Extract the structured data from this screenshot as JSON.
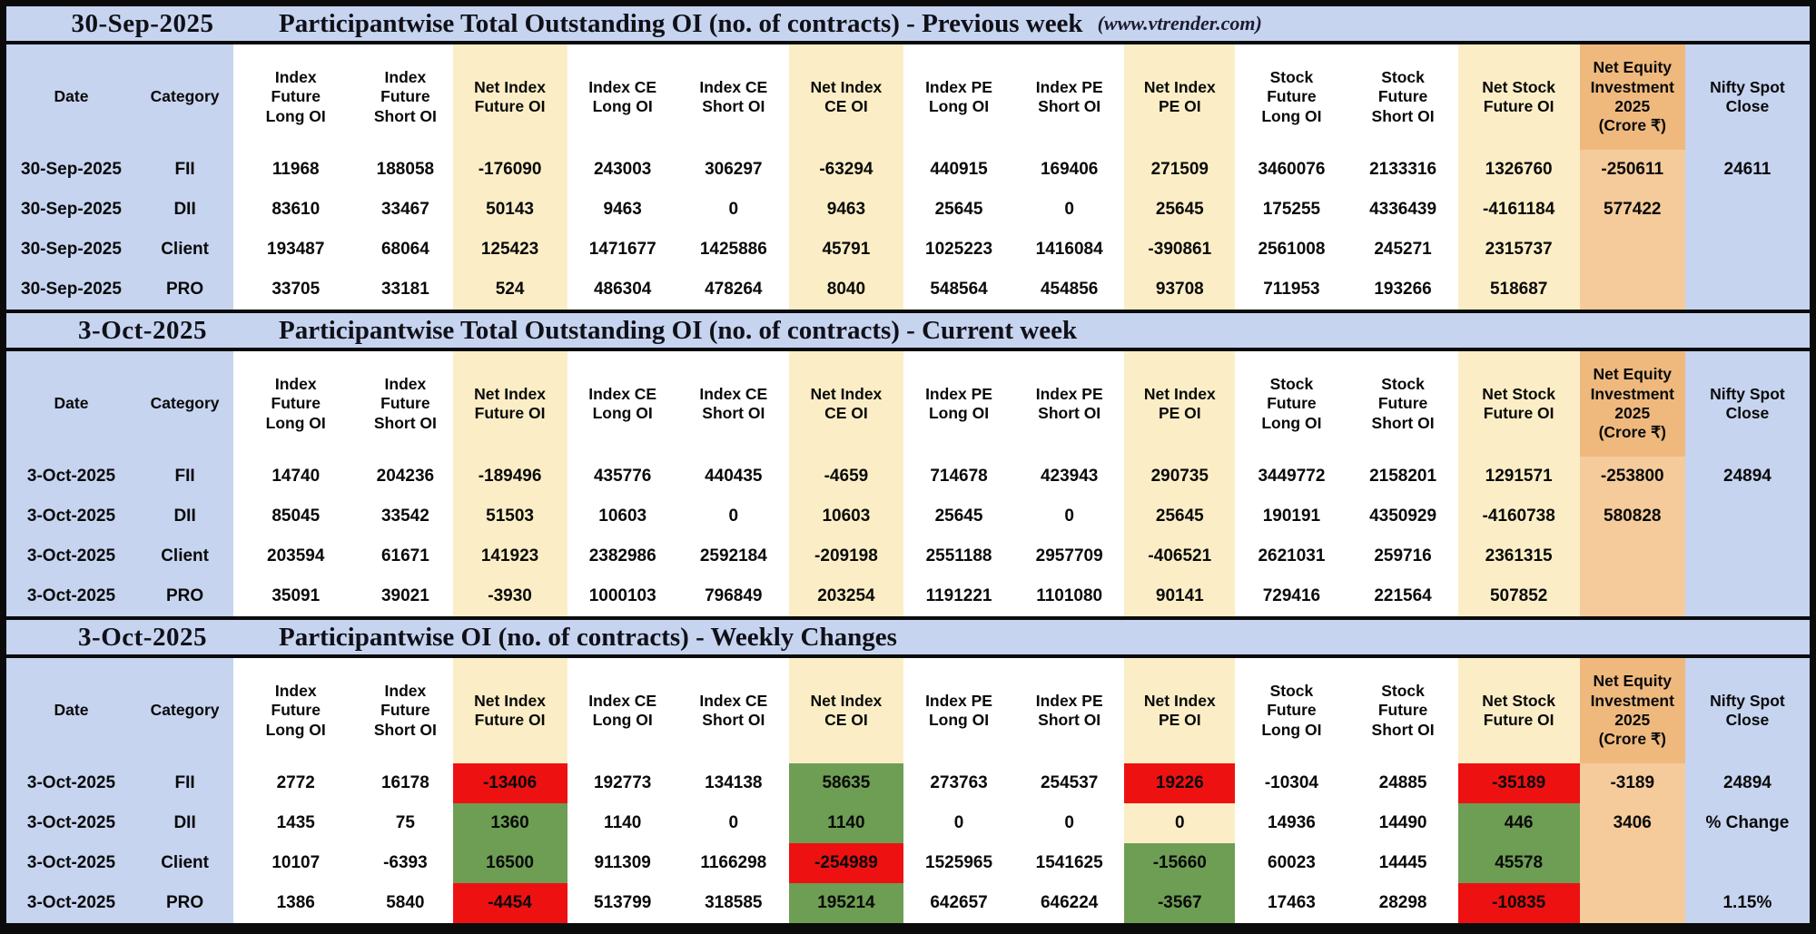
{
  "colors": {
    "title_and_label_blue": "#c6d4f0",
    "net_column_cream": "#fbeec6",
    "equity_column_orange": "#f5cb9b",
    "equity_header_orange": "#efb97e",
    "positive_text_green": "#38761d",
    "negative_text_red": "#fe0606",
    "positive_bg_green": "#6d9e54",
    "negative_bg_red": "#ee1111",
    "percent_change_green": "#6aa84f"
  },
  "columns": [
    {
      "id": "date",
      "label": "Date"
    },
    {
      "id": "category",
      "label": "Category"
    },
    {
      "id": "index-future-long-oi",
      "label": "Index\nFuture\nLong OI"
    },
    {
      "id": "index-future-short-oi",
      "label": "Index\nFuture\nShort OI"
    },
    {
      "id": "net-index-future-oi",
      "label": "Net Index\nFuture OI"
    },
    {
      "id": "index-ce-long-oi",
      "label": "Index CE\nLong OI"
    },
    {
      "id": "index-ce-short-oi",
      "label": "Index CE\nShort OI"
    },
    {
      "id": "net-index-ce-oi",
      "label": "Net Index\nCE OI"
    },
    {
      "id": "index-pe-long-oi",
      "label": "Index PE\nLong OI"
    },
    {
      "id": "index-pe-short-oi",
      "label": "Index PE\nShort OI"
    },
    {
      "id": "net-index-pe-oi",
      "label": "Net Index\nPE OI"
    },
    {
      "id": "stock-future-long-oi",
      "label": "Stock\nFuture\nLong OI"
    },
    {
      "id": "stock-future-short-oi",
      "label": "Stock\nFuture\nShort OI"
    },
    {
      "id": "net-stock-future-oi",
      "label": "Net Stock\nFuture OI"
    },
    {
      "id": "net-equity-investment",
      "label": "Net Equity\nInvestment\n2025\n(Crore ₹)"
    },
    {
      "id": "nifty-spot-close",
      "label": "Nifty Spot\nClose"
    }
  ],
  "sections": [
    {
      "date": "30-Sep-2025",
      "title": "Participantwise Total Outstanding OI (no. of contracts) - Previous week",
      "note": "(www.vtrender.com)",
      "rows": [
        {
          "date": "30-Sep-2025",
          "category": "FII",
          "cells": [
            {
              "v": "11968"
            },
            {
              "v": "188058"
            },
            {
              "v": "-176090",
              "s": "neg"
            },
            {
              "v": "243003"
            },
            {
              "v": "306297"
            },
            {
              "v": "-63294",
              "s": "neg"
            },
            {
              "v": "440915"
            },
            {
              "v": "169406"
            },
            {
              "v": "271509",
              "s": "pos"
            },
            {
              "v": "3460076"
            },
            {
              "v": "2133316"
            },
            {
              "v": "1326760",
              "s": "pos"
            },
            {
              "v": "-250611",
              "s": "neg"
            },
            {
              "v": "24611"
            }
          ]
        },
        {
          "date": "30-Sep-2025",
          "category": "DII",
          "cells": [
            {
              "v": "83610"
            },
            {
              "v": "33467"
            },
            {
              "v": "50143",
              "s": "pos"
            },
            {
              "v": "9463"
            },
            {
              "v": "0"
            },
            {
              "v": "9463",
              "s": "pos"
            },
            {
              "v": "25645"
            },
            {
              "v": "0"
            },
            {
              "v": "25645",
              "s": "pos"
            },
            {
              "v": "175255"
            },
            {
              "v": "4336439"
            },
            {
              "v": "-4161184",
              "s": "neg"
            },
            {
              "v": "577422",
              "s": "pos"
            },
            {
              "v": ""
            }
          ]
        },
        {
          "date": "30-Sep-2025",
          "category": "Client",
          "cells": [
            {
              "v": "193487"
            },
            {
              "v": "68064"
            },
            {
              "v": "125423",
              "s": "pos"
            },
            {
              "v": "1471677"
            },
            {
              "v": "1425886"
            },
            {
              "v": "45791",
              "s": "pos"
            },
            {
              "v": "1025223"
            },
            {
              "v": "1416084"
            },
            {
              "v": "-390861",
              "s": "neg"
            },
            {
              "v": "2561008"
            },
            {
              "v": "245271"
            },
            {
              "v": "2315737",
              "s": "pos"
            },
            {
              "v": ""
            },
            {
              "v": ""
            }
          ]
        },
        {
          "date": "30-Sep-2025",
          "category": "PRO",
          "cells": [
            {
              "v": "33705"
            },
            {
              "v": "33181"
            },
            {
              "v": "524",
              "s": "pos"
            },
            {
              "v": "486304"
            },
            {
              "v": "478264"
            },
            {
              "v": "8040",
              "s": "pos"
            },
            {
              "v": "548564"
            },
            {
              "v": "454856"
            },
            {
              "v": "93708",
              "s": "pos"
            },
            {
              "v": "711953"
            },
            {
              "v": "193266"
            },
            {
              "v": "518687",
              "s": "pos"
            },
            {
              "v": ""
            },
            {
              "v": ""
            }
          ]
        }
      ]
    },
    {
      "date": "3-Oct-2025",
      "title": "Participantwise Total Outstanding OI (no. of contracts) - Current week",
      "note": "",
      "rows": [
        {
          "date": "3-Oct-2025",
          "category": "FII",
          "cells": [
            {
              "v": "14740"
            },
            {
              "v": "204236"
            },
            {
              "v": "-189496",
              "s": "neg"
            },
            {
              "v": "435776"
            },
            {
              "v": "440435"
            },
            {
              "v": "-4659",
              "s": "neg"
            },
            {
              "v": "714678"
            },
            {
              "v": "423943"
            },
            {
              "v": "290735",
              "s": "pos"
            },
            {
              "v": "3449772"
            },
            {
              "v": "2158201"
            },
            {
              "v": "1291571",
              "s": "pos"
            },
            {
              "v": "-253800",
              "s": "neg"
            },
            {
              "v": "24894"
            }
          ]
        },
        {
          "date": "3-Oct-2025",
          "category": "DII",
          "cells": [
            {
              "v": "85045"
            },
            {
              "v": "33542"
            },
            {
              "v": "51503",
              "s": "pos"
            },
            {
              "v": "10603"
            },
            {
              "v": "0"
            },
            {
              "v": "10603",
              "s": "pos"
            },
            {
              "v": "25645"
            },
            {
              "v": "0"
            },
            {
              "v": "25645",
              "s": "pos"
            },
            {
              "v": "190191"
            },
            {
              "v": "4350929"
            },
            {
              "v": "-4160738",
              "s": "neg"
            },
            {
              "v": "580828",
              "s": "pos"
            },
            {
              "v": ""
            }
          ]
        },
        {
          "date": "3-Oct-2025",
          "category": "Client",
          "cells": [
            {
              "v": "203594"
            },
            {
              "v": "61671"
            },
            {
              "v": "141923",
              "s": "pos"
            },
            {
              "v": "2382986"
            },
            {
              "v": "2592184"
            },
            {
              "v": "-209198",
              "s": "neg"
            },
            {
              "v": "2551188"
            },
            {
              "v": "2957709"
            },
            {
              "v": "-406521",
              "s": "neg"
            },
            {
              "v": "2621031"
            },
            {
              "v": "259716"
            },
            {
              "v": "2361315",
              "s": "pos"
            },
            {
              "v": ""
            },
            {
              "v": ""
            }
          ]
        },
        {
          "date": "3-Oct-2025",
          "category": "PRO",
          "cells": [
            {
              "v": "35091"
            },
            {
              "v": "39021"
            },
            {
              "v": "-3930",
              "s": "neg"
            },
            {
              "v": "1000103"
            },
            {
              "v": "796849"
            },
            {
              "v": "203254",
              "s": "pos"
            },
            {
              "v": "1191221"
            },
            {
              "v": "1101080"
            },
            {
              "v": "90141",
              "s": "pos"
            },
            {
              "v": "729416"
            },
            {
              "v": "221564"
            },
            {
              "v": "507852",
              "s": "pos"
            },
            {
              "v": ""
            },
            {
              "v": ""
            }
          ]
        }
      ]
    },
    {
      "date": "3-Oct-2025",
      "title": "Participantwise OI (no. of contracts) - Weekly Changes",
      "note": "",
      "rows": [
        {
          "date": "3-Oct-2025",
          "category": "FII",
          "cells": [
            {
              "v": "2772"
            },
            {
              "v": "16178"
            },
            {
              "v": "-13406",
              "s": "bgneg"
            },
            {
              "v": "192773"
            },
            {
              "v": "134138"
            },
            {
              "v": "58635",
              "s": "bgpos"
            },
            {
              "v": "273763"
            },
            {
              "v": "254537"
            },
            {
              "v": "19226",
              "s": "bgneg"
            },
            {
              "v": "-10304",
              "s": "neg"
            },
            {
              "v": "24885"
            },
            {
              "v": "-35189",
              "s": "bgneg"
            },
            {
              "v": "-3189",
              "s": "neg"
            },
            {
              "v": "24894"
            }
          ]
        },
        {
          "date": "3-Oct-2025",
          "category": "DII",
          "cells": [
            {
              "v": "1435"
            },
            {
              "v": "75"
            },
            {
              "v": "1360",
              "s": "bgpos"
            },
            {
              "v": "1140"
            },
            {
              "v": "0"
            },
            {
              "v": "1140",
              "s": "bgpos"
            },
            {
              "v": "0"
            },
            {
              "v": "0"
            },
            {
              "v": "0"
            },
            {
              "v": "14936"
            },
            {
              "v": "14490"
            },
            {
              "v": "446",
              "s": "bgpos"
            },
            {
              "v": "3406",
              "s": "pos"
            },
            {
              "v": "% Change",
              "s": "plabel"
            }
          ]
        },
        {
          "date": "3-Oct-2025",
          "category": "Client",
          "cells": [
            {
              "v": "10107"
            },
            {
              "v": "-6393",
              "s": "neg"
            },
            {
              "v": "16500",
              "s": "bgpos"
            },
            {
              "v": "911309"
            },
            {
              "v": "1166298"
            },
            {
              "v": "-254989",
              "s": "bgneg"
            },
            {
              "v": "1525965"
            },
            {
              "v": "1541625"
            },
            {
              "v": "-15660",
              "s": "bgpos"
            },
            {
              "v": "60023"
            },
            {
              "v": "14445"
            },
            {
              "v": "45578",
              "s": "bgpos"
            },
            {
              "v": ""
            },
            {
              "v": ""
            }
          ]
        },
        {
          "date": "3-Oct-2025",
          "category": "PRO",
          "cells": [
            {
              "v": "1386"
            },
            {
              "v": "5840"
            },
            {
              "v": "-4454",
              "s": "bgneg"
            },
            {
              "v": "513799"
            },
            {
              "v": "318585"
            },
            {
              "v": "195214",
              "s": "bgpos"
            },
            {
              "v": "642657"
            },
            {
              "v": "646224"
            },
            {
              "v": "-3567",
              "s": "bgpos"
            },
            {
              "v": "17463"
            },
            {
              "v": "28298"
            },
            {
              "v": "-10835",
              "s": "bgneg"
            },
            {
              "v": ""
            },
            {
              "v": "1.15%",
              "s": "poslight"
            }
          ]
        }
      ]
    }
  ]
}
